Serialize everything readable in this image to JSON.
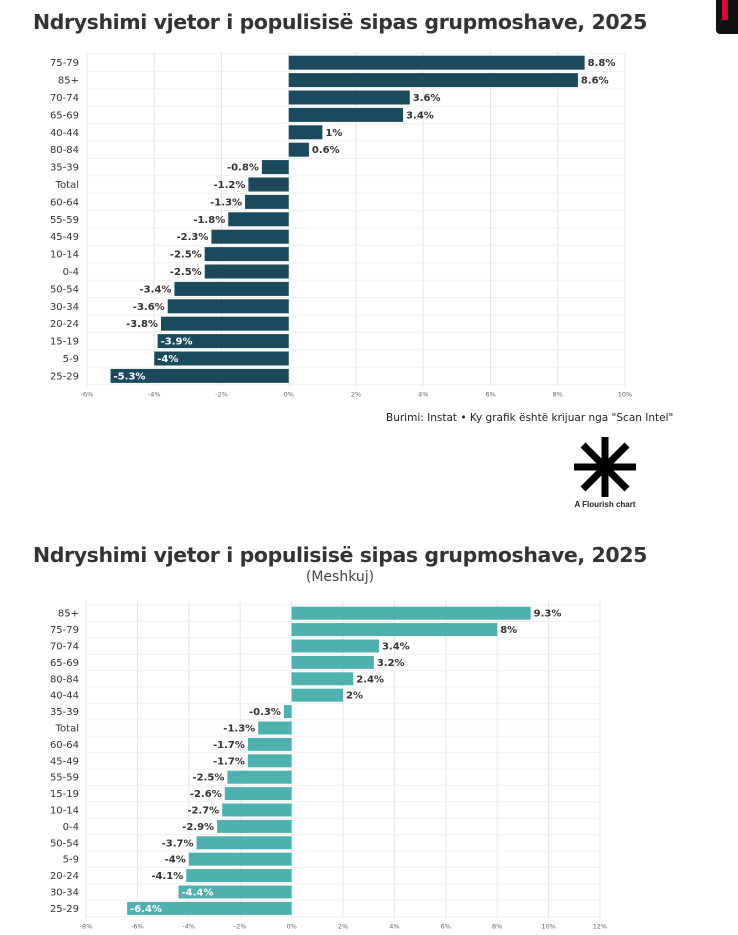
{
  "charts": [
    {
      "title": "Ndryshimi vjetor i populisisë sipas grupmoshave, 2025",
      "subtitle": "",
      "color": "#1a4a5c"
    },
    {
      "title": "Ndryshimi vjetor i populisisë sipas grupmoshave, 2025",
      "subtitle": "(Meshkuj)",
      "color": "#4fb0b0"
    }
  ],
  "source": "Burimi: Instat • Ky grafik është krijuar nga \"Scan Intel\"",
  "flourish_label": "A Flourish chart",
  "chart_data": [
    {
      "type": "bar",
      "orientation": "horizontal",
      "title": "Ndryshimi vjetor i populisisë sipas grupmoshave, 2025",
      "categories": [
        "75-79",
        "85+",
        "70-74",
        "65-69",
        "40-44",
        "80-84",
        "35-39",
        "Total",
        "60-64",
        "55-59",
        "45-49",
        "10-14",
        "0-4",
        "50-54",
        "30-34",
        "20-24",
        "15-19",
        "5-9",
        "25-29"
      ],
      "values": [
        8.8,
        8.6,
        3.6,
        3.4,
        1,
        0.6,
        -0.8,
        -1.2,
        -1.3,
        -1.8,
        -2.3,
        -2.5,
        -2.5,
        -3.4,
        -3.6,
        -3.8,
        -3.9,
        -4,
        -5.3
      ],
      "labels": [
        "8.8%",
        "8.6%",
        "3.6%",
        "3.4%",
        "1%",
        "0.6%",
        "-0.8%",
        "-1.2%",
        "-1.3%",
        "-1.8%",
        "-2.3%",
        "-2.5%",
        "-2.5%",
        "-3.4%",
        "-3.6%",
        "-3.8%",
        "-3.9%",
        "-4%",
        "-5.3%"
      ],
      "xlim": [
        -6,
        10
      ],
      "xticks": [
        "-6%",
        "-4%",
        "-2%",
        "0%",
        "2%",
        "4%",
        "6%",
        "8%",
        "10%"
      ],
      "xtick_values": [
        -6,
        -4,
        -2,
        0,
        2,
        4,
        6,
        8,
        10
      ],
      "grid": true
    },
    {
      "type": "bar",
      "orientation": "horizontal",
      "title": "Ndryshimi vjetor i populisisë sipas grupmoshave, 2025",
      "subtitle": "(Meshkuj)",
      "categories": [
        "85+",
        "75-79",
        "70-74",
        "65-69",
        "80-84",
        "40-44",
        "35-39",
        "Total",
        "60-64",
        "45-49",
        "55-59",
        "15-19",
        "10-14",
        "0-4",
        "50-54",
        "5-9",
        "20-24",
        "30-34",
        "25-29"
      ],
      "values": [
        9.3,
        8,
        3.4,
        3.2,
        2.4,
        2,
        -0.3,
        -1.3,
        -1.7,
        -1.7,
        -2.5,
        -2.6,
        -2.7,
        -2.9,
        -3.7,
        -4,
        -4.1,
        -4.4,
        -6.4
      ],
      "labels": [
        "9.3%",
        "8%",
        "3.4%",
        "3.2%",
        "2.4%",
        "2%",
        "-0.3%",
        "-1.3%",
        "-1.7%",
        "-1.7%",
        "-2.5%",
        "-2.6%",
        "-2.7%",
        "-2.9%",
        "-3.7%",
        "-4%",
        "-4.1%",
        "-4.4%",
        "-6.4%"
      ],
      "xlim": [
        -8,
        12
      ],
      "xticks": [
        "-8%",
        "-6%",
        "-4%",
        "-2%",
        "0%",
        "2%",
        "4%",
        "6%",
        "8%",
        "10%",
        "12%"
      ],
      "xtick_values": [
        -8,
        -6,
        -4,
        -2,
        0,
        2,
        4,
        6,
        8,
        10,
        12
      ],
      "grid": true
    }
  ]
}
